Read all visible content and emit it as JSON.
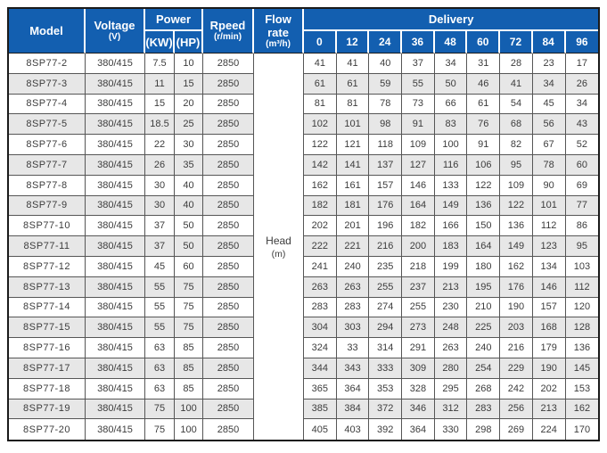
{
  "colors": {
    "header_bg": "#135fb0",
    "header_text": "#ffffff",
    "alt_row_bg": "#e7e7e7",
    "grid_line": "#565656",
    "outer_border": "#1a1a1a",
    "body_text": "#3c3c3c"
  },
  "table": {
    "header": {
      "model": "Model",
      "voltage": "Voltage",
      "voltage_unit": "(V)",
      "power": "Power",
      "power_kw": "(KW)",
      "power_hp": "(HP)",
      "speed": "Rpeed",
      "speed_unit": "(r/min)",
      "flow_rate": "Flow rate",
      "flow_rate_unit": "(m³/h)",
      "delivery": "Delivery",
      "delivery_columns": [
        "0",
        "12",
        "24",
        "36",
        "48",
        "60",
        "72",
        "84",
        "96"
      ]
    },
    "head_label": "Head",
    "head_unit": "(m)",
    "rows": [
      {
        "model": "8SP77-2",
        "voltage": "380/415",
        "kw": "7.5",
        "hp": "10",
        "speed": "2850",
        "delivery": [
          "41",
          "41",
          "40",
          "37",
          "34",
          "31",
          "28",
          "23",
          "17"
        ]
      },
      {
        "model": "8SP77-3",
        "voltage": "380/415",
        "kw": "11",
        "hp": "15",
        "speed": "2850",
        "delivery": [
          "61",
          "61",
          "59",
          "55",
          "50",
          "46",
          "41",
          "34",
          "26"
        ]
      },
      {
        "model": "8SP77-4",
        "voltage": "380/415",
        "kw": "15",
        "hp": "20",
        "speed": "2850",
        "delivery": [
          "81",
          "81",
          "78",
          "73",
          "66",
          "61",
          "54",
          "45",
          "34"
        ]
      },
      {
        "model": "8SP77-5",
        "voltage": "380/415",
        "kw": "18.5",
        "hp": "25",
        "speed": "2850",
        "delivery": [
          "102",
          "101",
          "98",
          "91",
          "83",
          "76",
          "68",
          "56",
          "43"
        ]
      },
      {
        "model": "8SP77-6",
        "voltage": "380/415",
        "kw": "22",
        "hp": "30",
        "speed": "2850",
        "delivery": [
          "122",
          "121",
          "118",
          "109",
          "100",
          "91",
          "82",
          "67",
          "52"
        ]
      },
      {
        "model": "8SP77-7",
        "voltage": "380/415",
        "kw": "26",
        "hp": "35",
        "speed": "2850",
        "delivery": [
          "142",
          "141",
          "137",
          "127",
          "116",
          "106",
          "95",
          "78",
          "60"
        ]
      },
      {
        "model": "8SP77-8",
        "voltage": "380/415",
        "kw": "30",
        "hp": "40",
        "speed": "2850",
        "delivery": [
          "162",
          "161",
          "157",
          "146",
          "133",
          "122",
          "109",
          "90",
          "69"
        ]
      },
      {
        "model": "8SP77-9",
        "voltage": "380/415",
        "kw": "30",
        "hp": "40",
        "speed": "2850",
        "delivery": [
          "182",
          "181",
          "176",
          "164",
          "149",
          "136",
          "122",
          "101",
          "77"
        ]
      },
      {
        "model": "8SP77-10",
        "voltage": "380/415",
        "kw": "37",
        "hp": "50",
        "speed": "2850",
        "delivery": [
          "202",
          "201",
          "196",
          "182",
          "166",
          "150",
          "136",
          "112",
          "86"
        ]
      },
      {
        "model": "8SP77-11",
        "voltage": "380/415",
        "kw": "37",
        "hp": "50",
        "speed": "2850",
        "delivery": [
          "222",
          "221",
          "216",
          "200",
          "183",
          "164",
          "149",
          "123",
          "95"
        ]
      },
      {
        "model": "8SP77-12",
        "voltage": "380/415",
        "kw": "45",
        "hp": "60",
        "speed": "2850",
        "delivery": [
          "241",
          "240",
          "235",
          "218",
          "199",
          "180",
          "162",
          "134",
          "103"
        ]
      },
      {
        "model": "8SP77-13",
        "voltage": "380/415",
        "kw": "55",
        "hp": "75",
        "speed": "2850",
        "delivery": [
          "263",
          "263",
          "255",
          "237",
          "213",
          "195",
          "176",
          "146",
          "112"
        ]
      },
      {
        "model": "8SP77-14",
        "voltage": "380/415",
        "kw": "55",
        "hp": "75",
        "speed": "2850",
        "delivery": [
          "283",
          "283",
          "274",
          "255",
          "230",
          "210",
          "190",
          "157",
          "120"
        ]
      },
      {
        "model": "8SP77-15",
        "voltage": "380/415",
        "kw": "55",
        "hp": "75",
        "speed": "2850",
        "delivery": [
          "304",
          "303",
          "294",
          "273",
          "248",
          "225",
          "203",
          "168",
          "128"
        ]
      },
      {
        "model": "8SP77-16",
        "voltage": "380/415",
        "kw": "63",
        "hp": "85",
        "speed": "2850",
        "delivery": [
          "324",
          "33",
          "314",
          "291",
          "263",
          "240",
          "216",
          "179",
          "136"
        ]
      },
      {
        "model": "8SP77-17",
        "voltage": "380/415",
        "kw": "63",
        "hp": "85",
        "speed": "2850",
        "delivery": [
          "344",
          "343",
          "333",
          "309",
          "280",
          "254",
          "229",
          "190",
          "145"
        ]
      },
      {
        "model": "8SP77-18",
        "voltage": "380/415",
        "kw": "63",
        "hp": "85",
        "speed": "2850",
        "delivery": [
          "365",
          "364",
          "353",
          "328",
          "295",
          "268",
          "242",
          "202",
          "153"
        ]
      },
      {
        "model": "8SP77-19",
        "voltage": "380/415",
        "kw": "75",
        "hp": "100",
        "speed": "2850",
        "delivery": [
          "385",
          "384",
          "372",
          "346",
          "312",
          "283",
          "256",
          "213",
          "162"
        ]
      },
      {
        "model": "8SP77-20",
        "voltage": "380/415",
        "kw": "75",
        "hp": "100",
        "speed": "2850",
        "delivery": [
          "405",
          "403",
          "392",
          "364",
          "330",
          "298",
          "269",
          "224",
          "170"
        ]
      }
    ]
  }
}
